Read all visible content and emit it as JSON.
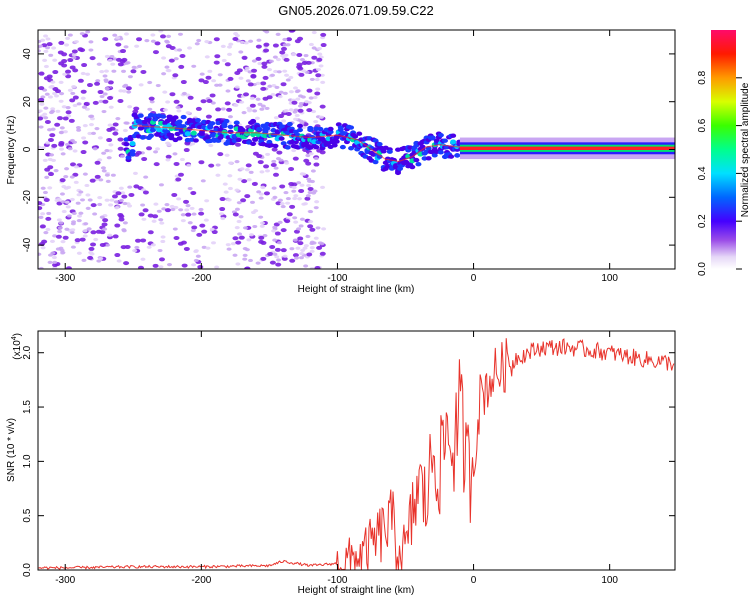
{
  "title": "GN05.2026.071.09.59.C22",
  "chart_data": [
    {
      "type": "heatmap",
      "xlabel": "Height of straight line (km)",
      "ylabel": "Frequency (Hz)",
      "xlim": [
        -320,
        148
      ],
      "ylim": [
        -50,
        50
      ],
      "xticks": [
        -300,
        -200,
        -100,
        0,
        100
      ],
      "yticks": [
        -40,
        -20,
        0,
        20,
        40
      ],
      "colorbar": {
        "label": "Normalized spectral amplitude",
        "range": [
          0,
          1
        ],
        "ticks": [
          "0.0",
          "0.2",
          "0.4",
          "0.6",
          "0.8"
        ]
      },
      "ridge": {
        "x": [
          -250,
          -220,
          -200,
          -180,
          -160,
          -140,
          -120,
          -100,
          -85,
          -75,
          -65,
          -55,
          -45,
          -35,
          -25,
          -10,
          0,
          50,
          100,
          148
        ],
        "y": [
          10,
          9,
          8,
          7,
          7,
          6,
          5,
          6,
          4,
          0,
          -4,
          -5,
          -3,
          1,
          2,
          1,
          0.5,
          0.5,
          0.5,
          0.5
        ]
      }
    },
    {
      "type": "line",
      "xlabel": "Height of straight line (km)",
      "ylabel": "SNR (10 * v/v)",
      "yscale_label": "(x10",
      "yscale_exponent": "4",
      "xlim": [
        -320,
        148
      ],
      "ylim": [
        0,
        2.2
      ],
      "xticks": [
        -300,
        -200,
        -100,
        0,
        100
      ],
      "yticks": [
        "0.0",
        "0.5",
        "1.0",
        "1.5",
        "2.0"
      ],
      "series": [
        {
          "name": "SNR",
          "color": "#e8332b",
          "x": [
            -320,
            -300,
            -250,
            -200,
            -150,
            -140,
            -120,
            -100,
            -90,
            -80,
            -70,
            -60,
            -55,
            -50,
            -45,
            -40,
            -35,
            -30,
            -25,
            -20,
            -15,
            -10,
            -5,
            0,
            5,
            10,
            15,
            20,
            30,
            40,
            50,
            70,
            100,
            120,
            148
          ],
          "y": [
            0.02,
            0.02,
            0.03,
            0.03,
            0.04,
            0.08,
            0.04,
            0.06,
            0.1,
            0.15,
            0.3,
            0.45,
            0.2,
            0.1,
            0.5,
            0.8,
            0.6,
            1.1,
            0.9,
            1.3,
            1.1,
            1.5,
            0.9,
            1.0,
            1.6,
            1.7,
            1.8,
            1.85,
            1.95,
            2.0,
            2.05,
            2.05,
            2.0,
            1.95,
            1.9
          ]
        }
      ]
    }
  ]
}
